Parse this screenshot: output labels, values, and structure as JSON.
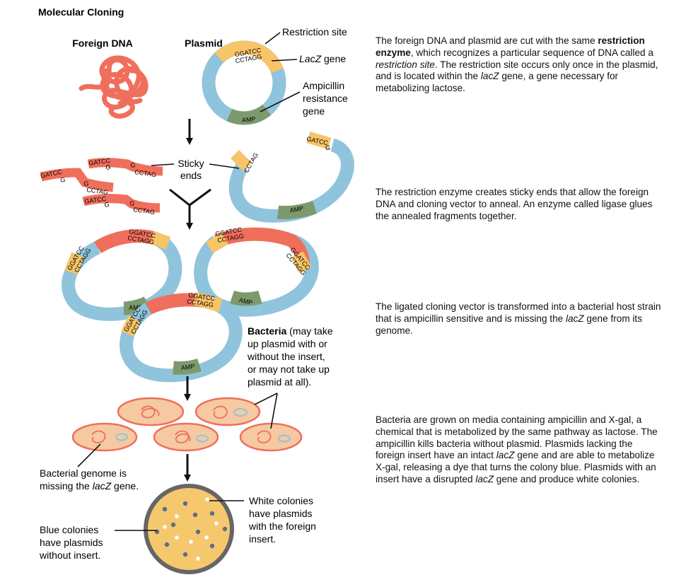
{
  "title": "Molecular Cloning",
  "colors": {
    "dna": "#ef6f5c",
    "dna_dark": "#cf4f3d",
    "plasmid": "#8fc4dc",
    "lacz": "#f7c468",
    "amp": "#7c9a6d",
    "cell_fill": "#f6c9a3",
    "cell_edge": "#ef6f5c",
    "dish_rim": "#666666",
    "agar": "#f6c86e",
    "blue_colony": "#5b6e8a",
    "white_colony": "#ffffff"
  },
  "labels": {
    "foreign_dna": "Foreign DNA",
    "plasmid": "Plasmid",
    "restriction_site": "Restriction site",
    "lacz_gene_italic": "LacZ",
    "lacz_gene_rest": " gene",
    "ampicillin_1": "Ampicillin",
    "ampicillin_2": "resistance",
    "ampicillin_3": "gene",
    "sticky_1": "Sticky",
    "sticky_2": "ends",
    "bacteria_bold": "Bacteria",
    "bacteria_1": " (may take",
    "bacteria_2": "up plasmid with or",
    "bacteria_3": "without the insert,",
    "bacteria_4": "or may not take up",
    "bacteria_5": "plasmid at all).",
    "genome_1": "Bacterial genome is",
    "genome_2a": "missing the ",
    "genome_2b": "lacZ",
    "genome_2c": " gene.",
    "white_1": "White colonies",
    "white_2": "have plasmids",
    "white_3": "with the foreign",
    "white_4": "insert.",
    "blue_1": "Blue colonies",
    "blue_2": "have plasmids",
    "blue_3": "without insert.",
    "amp": "AMP",
    "seq_top": "GGATCC",
    "seq_bottom": "CCTAGG",
    "gatcc": "GATCC",
    "g": "G",
    "cctag": "CCTAG"
  },
  "descriptions": {
    "d1": {
      "p1": "The foreign DNA and plasmid are cut with the same ",
      "b1": "restriction enzyme",
      "p2": ", which recognizes a particular sequence of DNA called a ",
      "i1": "restriction site",
      "p3": ". The restriction site occurs only once in the plasmid, and is located within the ",
      "i2": "lacZ",
      "p4": " gene, a gene necessary for metabolizing lactose."
    },
    "d2": {
      "p1": "The restriction enzyme creates sticky ends that allow the foreign DNA and cloning vector to anneal. An enzyme called ligase glues the annealed fragments together."
    },
    "d3": {
      "p1": "The ligated cloning vector is transformed into a bacterial host strain that is ampicillin sensitive and is missing the ",
      "i1": "lacZ",
      "p2": " gene from its genome."
    },
    "d4": {
      "p1": "Bacteria are grown on media containing ampicillin and X-gal, a chemical that is metabolized by the same pathway as lactose. The ampicillin kills bacteria without plasmid. Plasmids lacking the foreign insert have an intact ",
      "i1": "lacZ",
      "p2": " gene and are able to metabolize X-gal, releasing a dye that turns the colony blue. Plasmids with an insert have a disrupted ",
      "i2": "lacZ",
      "p3": " gene and produce white colonies."
    }
  }
}
